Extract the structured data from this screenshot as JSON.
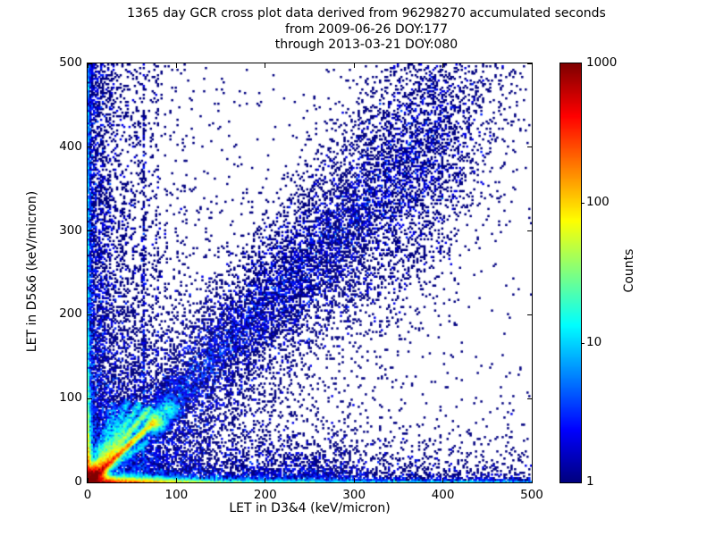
{
  "title": {
    "line1": "1365 day GCR cross plot data derived from 96298270 accumulated seconds",
    "line2": "from 2009-06-26 DOY:177",
    "line3": "through 2013-03-21 DOY:080"
  },
  "chart_data": {
    "type": "heatmap",
    "title": "1365 day GCR cross plot data derived from 96298270 accumulated seconds from 2009-06-26 DOY:177 through 2013-03-21 DOY:080",
    "xlabel": "LET in D3&4 (keV/micron)",
    "ylabel": "LET in D5&6 (keV/micron)",
    "xlim": [
      0,
      500
    ],
    "ylim": [
      0,
      500
    ],
    "xticks": [
      0,
      100,
      200,
      300,
      400,
      500
    ],
    "yticks": [
      0,
      100,
      200,
      300,
      400,
      500
    ],
    "grid": false,
    "bins": [
      250,
      235
    ],
    "seed": 20130321,
    "colorbar": {
      "label": "Counts",
      "scale": "log",
      "min": 1,
      "max": 1000,
      "ticks": [
        1,
        10,
        100,
        1000
      ],
      "colormap": "jet",
      "color_at_1": "#000080",
      "color_at_10": "#00d4ff",
      "color_at_100": "#ffd400",
      "color_at_1000": "#7f0000"
    },
    "features": [
      {
        "kind": "expfield",
        "amp": 0.035,
        "sx": 230,
        "sy": 900,
        "note": "sparse background scatter"
      },
      {
        "kind": "expfield",
        "amp": 1.3,
        "sx": 14,
        "sy": 2600,
        "note": "dense column along y-axis"
      },
      {
        "kind": "expfield",
        "amp": 0.45,
        "sx": 40,
        "sy": 1200,
        "note": "left region speckle"
      },
      {
        "kind": "expfield",
        "amp": 3.0,
        "sx": 75,
        "sy": 75,
        "note": "dense lower-left quadrant"
      },
      {
        "kind": "expfield",
        "amp": 0.5,
        "sx": 200,
        "sy": 55,
        "note": "lower wedge speckle"
      },
      {
        "kind": "expfield",
        "amp": 26,
        "sx": 1.3,
        "sy": 420,
        "note": "bright line at x=0"
      },
      {
        "kind": "expfield",
        "amp": 700,
        "sx": 1.6,
        "sy": 26,
        "note": "hot base of y-axis line"
      },
      {
        "kind": "expfield",
        "amp": 1.6,
        "sx": 1400,
        "sy": 7.5,
        "note": "dense band along x-axis"
      },
      {
        "kind": "expfield",
        "amp": 0.5,
        "sx": 500,
        "sy": 22,
        "note": "diffuse spread above x-axis band"
      },
      {
        "kind": "expfield",
        "amp": 33,
        "sx": 650,
        "sy": 1.4,
        "note": "bright line at y=0"
      },
      {
        "kind": "expfield",
        "amp": 1300,
        "sx": 40,
        "sy": 2.2,
        "note": "hot base of x-axis line"
      },
      {
        "kind": "blob",
        "x": 4,
        "y": 4,
        "sigma": 7,
        "amp": 1400,
        "note": "saturated hot spot at origin"
      },
      {
        "kind": "blob",
        "x": 76,
        "y": 73,
        "sigma": 6,
        "amp": 55,
        "note": "bright knot at end of main streak"
      },
      {
        "kind": "blob",
        "x": 92,
        "y": 88,
        "sigma": 7,
        "amp": 12,
        "note": "cyan smear beyond main streak"
      },
      {
        "kind": "ray",
        "slope": 0.97,
        "amp": 950,
        "w": 1.8,
        "len": 105,
        "tau": 38,
        "note": "bright y=x streak from origin"
      },
      {
        "kind": "ray",
        "slope": 1.28,
        "amp": 160,
        "w": 2.2,
        "len": 115,
        "tau": 55,
        "note": "fan streak 2"
      },
      {
        "kind": "ray",
        "slope": 1.62,
        "amp": 70,
        "w": 2.6,
        "len": 112,
        "tau": 60,
        "note": "fan streak 3"
      },
      {
        "kind": "ray",
        "slope": 2.1,
        "amp": 32,
        "w": 3.0,
        "len": 108,
        "tau": 65,
        "note": "fan streak 4"
      },
      {
        "kind": "ray",
        "slope": 2.9,
        "amp": 14,
        "w": 3.2,
        "len": 100,
        "tau": 70,
        "note": "fan streak 5"
      },
      {
        "kind": "ray",
        "slope": 0.72,
        "amp": 45,
        "w": 2.0,
        "len": 85,
        "tau": 45,
        "note": "shallow fan streak"
      },
      {
        "kind": "band",
        "slope": 1.05,
        "amp": 1.2,
        "xdecay": 420,
        "w0": 7,
        "wgrow": 0.15,
        "xfade": 390,
        "fadelen": 45,
        "coreamp": 1.8,
        "coredecay": 200,
        "corew": 0.4,
        "note": "broad diagonal GCR correlation band to ~(400,500)"
      },
      {
        "kind": "vstreak",
        "x": 38,
        "amp": 0.5,
        "w": 1.6,
        "tau": 160,
        "note": "faint vertical streak"
      },
      {
        "kind": "vstreak",
        "x": 52,
        "amp": 0.55,
        "w": 1.4,
        "tau": 230,
        "note": "faint vertical streak"
      },
      {
        "kind": "vstreak",
        "x": 63,
        "amp": 2.2,
        "w": 1.1,
        "tau": 320,
        "note": "prominent vertical streak"
      },
      {
        "kind": "vstreak",
        "x": 78,
        "amp": 0.9,
        "w": 1.4,
        "tau": 210,
        "note": "vertical streak"
      },
      {
        "kind": "vstreak",
        "x": 110,
        "amp": 0.32,
        "w": 2.0,
        "tau": 160,
        "note": "faint vertical streak"
      },
      {
        "kind": "vstreak",
        "x": 135,
        "amp": 0.22,
        "w": 2.0,
        "tau": 140,
        "note": "faint vertical streak"
      },
      {
        "kind": "hump",
        "x": 245,
        "amp": 2.0,
        "sx": 38,
        "sy": 12,
        "note": "bulge in x-axis band"
      }
    ]
  }
}
